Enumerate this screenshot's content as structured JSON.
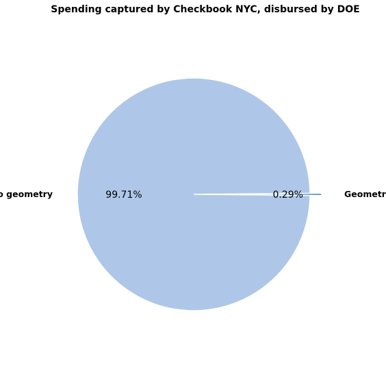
{
  "chart_data": {
    "type": "pie",
    "title": "Spending captured by Checkbook NYC, disbursed by DOE",
    "categories": [
      "No geometry",
      "Geometry"
    ],
    "values": [
      99.71,
      0.29
    ],
    "percent_labels": [
      "99.71%",
      "0.29%"
    ],
    "colors": [
      "#aec7e8",
      "#1f77b4"
    ],
    "exploded": [
      false,
      true
    ],
    "legend": "none"
  }
}
